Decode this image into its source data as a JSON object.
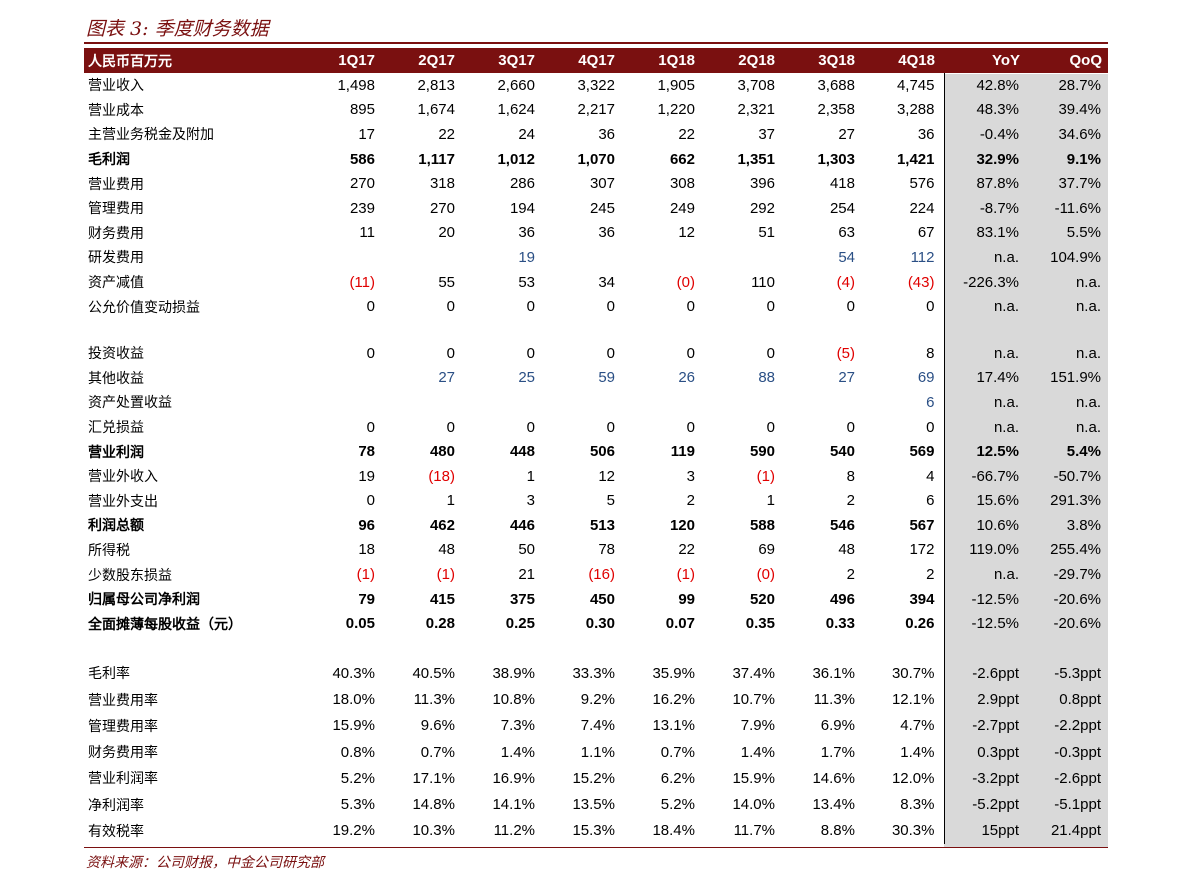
{
  "figure": {
    "title": "图表 3: 季度财务数据",
    "source": "资料来源：公司财报，中金公司研究部"
  },
  "colors": {
    "accent": "#7a1010",
    "shade": "#d9d9d9",
    "positive_blue": "#2a4f85",
    "negative_red": "#e00000"
  },
  "table": {
    "headers": [
      "人民币百万元",
      "1Q17",
      "2Q17",
      "3Q17",
      "4Q17",
      "1Q18",
      "2Q18",
      "3Q18",
      "4Q18",
      "YoY",
      "QoQ"
    ],
    "rows": [
      {
        "type": "main",
        "bold": false,
        "cells": [
          "营业收入",
          "1,498",
          "2,813",
          "2,660",
          "3,322",
          "1,905",
          "3,708",
          "3,688",
          "4,745",
          "42.8%",
          "28.7%"
        ]
      },
      {
        "type": "main",
        "bold": false,
        "cells": [
          "营业成本",
          "895",
          "1,674",
          "1,624",
          "2,217",
          "1,220",
          "2,321",
          "2,358",
          "3,288",
          "48.3%",
          "39.4%"
        ]
      },
      {
        "type": "main",
        "bold": false,
        "cells": [
          "主营业务税金及附加",
          "17",
          "22",
          "24",
          "36",
          "22",
          "37",
          "27",
          "36",
          "-0.4%",
          "34.6%"
        ]
      },
      {
        "type": "main",
        "bold": true,
        "cells": [
          "毛利润",
          "586",
          "1,117",
          "1,012",
          "1,070",
          "662",
          "1,351",
          "1,303",
          "1,421",
          "32.9%",
          "9.1%"
        ]
      },
      {
        "type": "main",
        "bold": false,
        "cells": [
          "营业费用",
          "270",
          "318",
          "286",
          "307",
          "308",
          "396",
          "418",
          "576",
          "87.8%",
          "37.7%"
        ]
      },
      {
        "type": "main",
        "bold": false,
        "cells": [
          "管理费用",
          "239",
          "270",
          "194",
          "245",
          "249",
          "292",
          "254",
          "224",
          "-8.7%",
          "-11.6%"
        ]
      },
      {
        "type": "main",
        "bold": false,
        "cells": [
          "财务费用",
          "11",
          "20",
          "36",
          "36",
          "12",
          "51",
          "63",
          "67",
          "83.1%",
          "5.5%"
        ]
      },
      {
        "type": "main",
        "bold": false,
        "cells": [
          "研发费用",
          "",
          "",
          "19",
          "",
          "",
          "",
          "54",
          "112",
          "n.a.",
          "104.9%"
        ],
        "blue": [
          3,
          7,
          8
        ]
      },
      {
        "type": "main",
        "bold": false,
        "cells": [
          "资产减值",
          "(11)",
          "55",
          "53",
          "34",
          "(0)",
          "110",
          "(4)",
          "(43)",
          "-226.3%",
          "n.a."
        ],
        "red": [
          1,
          5,
          7,
          8
        ]
      },
      {
        "type": "main",
        "bold": false,
        "cells": [
          "公允价值变动损益",
          "0",
          "0",
          "0",
          "0",
          "0",
          "0",
          "0",
          "0",
          "n.a.",
          "n.a."
        ]
      },
      {
        "type": "gap1",
        "cells": [
          "",
          "",
          "",
          "",
          "",
          "",
          "",
          "",
          "",
          "",
          ""
        ]
      },
      {
        "type": "main",
        "bold": false,
        "cells": [
          "投资收益",
          "0",
          "0",
          "0",
          "0",
          "0",
          "0",
          "(5)",
          "8",
          "n.a.",
          "n.a."
        ],
        "red": [
          7
        ]
      },
      {
        "type": "main",
        "bold": false,
        "cells": [
          "其他收益",
          "",
          "27",
          "25",
          "59",
          "26",
          "88",
          "27",
          "69",
          "17.4%",
          "151.9%"
        ],
        "blue": [
          2,
          3,
          4,
          5,
          6,
          7,
          8
        ]
      },
      {
        "type": "main",
        "bold": false,
        "cells": [
          "资产处置收益",
          "",
          "",
          "",
          "",
          "",
          "",
          "",
          "6",
          "n.a.",
          "n.a."
        ],
        "blue": [
          8
        ]
      },
      {
        "type": "main",
        "bold": false,
        "cells": [
          "汇兑损益",
          "0",
          "0",
          "0",
          "0",
          "0",
          "0",
          "0",
          "0",
          "n.a.",
          "n.a."
        ]
      },
      {
        "type": "main",
        "bold": true,
        "cells": [
          "营业利润",
          "78",
          "480",
          "448",
          "506",
          "119",
          "590",
          "540",
          "569",
          "12.5%",
          "5.4%"
        ]
      },
      {
        "type": "main",
        "bold": false,
        "cells": [
          "营业外收入",
          "19",
          "(18)",
          "1",
          "12",
          "3",
          "(1)",
          "8",
          "4",
          "-66.7%",
          "-50.7%"
        ],
        "red": [
          2,
          6
        ]
      },
      {
        "type": "main",
        "bold": false,
        "cells": [
          "营业外支出",
          "0",
          "1",
          "3",
          "5",
          "2",
          "1",
          "2",
          "6",
          "15.6%",
          "291.3%"
        ]
      },
      {
        "type": "main",
        "bold": true,
        "cells": [
          "利润总额",
          "96",
          "462",
          "446",
          "513",
          "120",
          "588",
          "546",
          "567",
          "10.6%",
          "3.8%"
        ],
        "normal_extra": [
          9,
          10
        ]
      },
      {
        "type": "main",
        "bold": false,
        "cells": [
          "所得税",
          "18",
          "48",
          "50",
          "78",
          "22",
          "69",
          "48",
          "172",
          "119.0%",
          "255.4%"
        ]
      },
      {
        "type": "main",
        "bold": false,
        "cells": [
          "少数股东损益",
          "(1)",
          "(1)",
          "21",
          "(16)",
          "(1)",
          "(0)",
          "2",
          "2",
          "n.a.",
          "-29.7%"
        ],
        "red": [
          1,
          2,
          4,
          5,
          6
        ]
      },
      {
        "type": "main",
        "bold": true,
        "cells": [
          "归属母公司净利润",
          "79",
          "415",
          "375",
          "450",
          "99",
          "520",
          "496",
          "394",
          "-12.5%",
          "-20.6%"
        ],
        "normal_extra": [
          9,
          10
        ]
      },
      {
        "type": "main",
        "bold": true,
        "cells": [
          "全面摊薄每股收益（元）",
          "0.05",
          "0.28",
          "0.25",
          "0.30",
          "0.07",
          "0.35",
          "0.33",
          "0.26",
          "-12.5%",
          "-20.6%"
        ],
        "normal_extra": [
          9,
          10
        ]
      },
      {
        "type": "gap2",
        "cells": [
          "",
          "",
          "",
          "",
          "",
          "",
          "",
          "",
          "",
          "",
          ""
        ]
      },
      {
        "type": "ratio",
        "bold": false,
        "cells": [
          "毛利率",
          "40.3%",
          "40.5%",
          "38.9%",
          "33.3%",
          "35.9%",
          "37.4%",
          "36.1%",
          "30.7%",
          "-2.6ppt",
          "-5.3ppt"
        ]
      },
      {
        "type": "ratio",
        "bold": false,
        "cells": [
          "营业费用率",
          "18.0%",
          "11.3%",
          "10.8%",
          "9.2%",
          "16.2%",
          "10.7%",
          "11.3%",
          "12.1%",
          "2.9ppt",
          "0.8ppt"
        ]
      },
      {
        "type": "ratio",
        "bold": false,
        "cells": [
          "管理费用率",
          "15.9%",
          "9.6%",
          "7.3%",
          "7.4%",
          "13.1%",
          "7.9%",
          "6.9%",
          "4.7%",
          "-2.7ppt",
          "-2.2ppt"
        ]
      },
      {
        "type": "ratio",
        "bold": false,
        "cells": [
          "财务费用率",
          "0.8%",
          "0.7%",
          "1.4%",
          "1.1%",
          "0.7%",
          "1.4%",
          "1.7%",
          "1.4%",
          "0.3ppt",
          "-0.3ppt"
        ]
      },
      {
        "type": "ratio",
        "bold": false,
        "cells": [
          "营业利润率",
          "5.2%",
          "17.1%",
          "16.9%",
          "15.2%",
          "6.2%",
          "15.9%",
          "14.6%",
          "12.0%",
          "-3.2ppt",
          "-2.6ppt"
        ]
      },
      {
        "type": "ratio",
        "bold": false,
        "cells": [
          "净利润率",
          "5.3%",
          "14.8%",
          "14.1%",
          "13.5%",
          "5.2%",
          "14.0%",
          "13.4%",
          "8.3%",
          "-5.2ppt",
          "-5.1ppt"
        ]
      },
      {
        "type": "ratio",
        "bold": false,
        "cells": [
          "有效税率",
          "19.2%",
          "10.3%",
          "11.2%",
          "15.3%",
          "18.4%",
          "11.7%",
          "8.8%",
          "30.3%",
          "15ppt",
          "21.4ppt"
        ]
      }
    ]
  }
}
